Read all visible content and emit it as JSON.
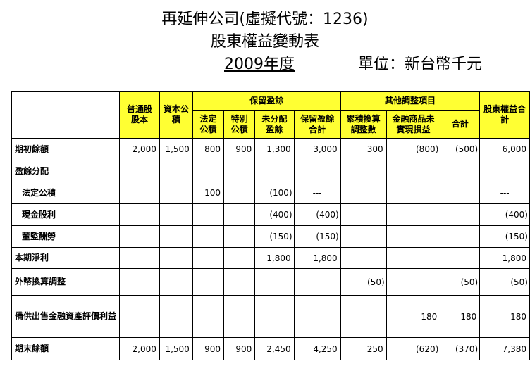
{
  "title": {
    "company": "再延伸公司(虛擬代號：1236)",
    "statement": "股東權益變動表",
    "year": "2009年度",
    "unit": "單位：新台幣千元"
  },
  "headers": {
    "common_stock": "普通股股本",
    "capital_reserve": "資本公積",
    "retained_earnings": "保留盈餘",
    "legal_reserve": "法定公積",
    "special_reserve": "特別公積",
    "unappropriated": "未分配盈餘",
    "retained_total": "保留盈餘合計",
    "other_adjustments": "其他調整項目",
    "cumulative_translation": "累積換算調整數",
    "unrealized_gain": "金融商品未實現損益",
    "other_total": "合計",
    "equity_total": "股東權益合計"
  },
  "rows": [
    {
      "label": "期初餘額",
      "indent": false,
      "cells": [
        "2,000",
        "1,500",
        "800",
        "900",
        "1,300",
        "3,000",
        "300",
        "(800)",
        "(500)",
        "6,000"
      ]
    },
    {
      "label": "盈餘分配",
      "indent": false,
      "cells": [
        "",
        "",
        "",
        "",
        "",
        "",
        "",
        "",
        "",
        ""
      ]
    },
    {
      "label": "法定公積",
      "indent": true,
      "cells": [
        "",
        "",
        "100",
        "",
        "(100)",
        "---",
        "",
        "",
        "",
        "---"
      ]
    },
    {
      "label": "現金股利",
      "indent": true,
      "cells": [
        "",
        "",
        "",
        "",
        "(400)",
        "(400)",
        "",
        "",
        "",
        "(400)"
      ]
    },
    {
      "label": "董監酬勞",
      "indent": true,
      "cells": [
        "",
        "",
        "",
        "",
        "(150)",
        "(150)",
        "",
        "",
        "",
        "(150)"
      ]
    },
    {
      "label": "本期淨利",
      "indent": false,
      "cells": [
        "",
        "",
        "",
        "",
        "1,800",
        "1,800",
        "",
        "",
        "",
        "1,800"
      ]
    },
    {
      "label": "外幣換算調整",
      "indent": false,
      "cells": [
        "",
        "",
        "",
        "",
        "",
        "",
        "(50)",
        "",
        "(50)",
        "(50)"
      ]
    },
    {
      "label": "備供出售金融資產評價利益",
      "indent": false,
      "cells": [
        "",
        "",
        "",
        "",
        "",
        "",
        "",
        "180",
        "180",
        "180"
      ]
    },
    {
      "label": "期末餘額",
      "indent": false,
      "cells": [
        "2,000",
        "1,500",
        "900",
        "900",
        "2,450",
        "4,250",
        "250",
        "(620)",
        "(370)",
        "7,380"
      ]
    }
  ]
}
